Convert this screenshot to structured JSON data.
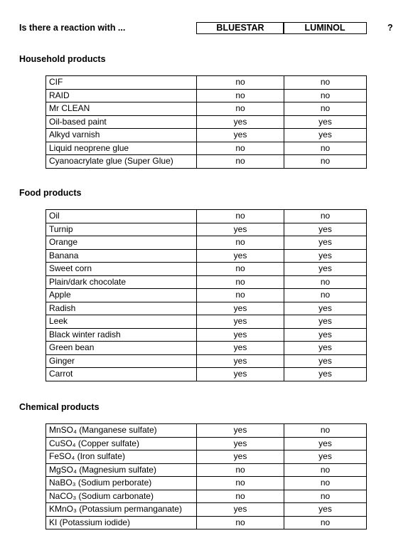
{
  "header": {
    "question": "Is there a reaction with ...",
    "columns": [
      "BLUESTAR",
      "LUMINOL"
    ],
    "mark": "?"
  },
  "sections": [
    {
      "title": "Household products",
      "rows": [
        [
          "CIF",
          "no",
          "no"
        ],
        [
          "RAID",
          "no",
          "no"
        ],
        [
          "Mr CLEAN",
          "no",
          "no"
        ],
        [
          "Oil-based paint",
          "yes",
          "yes"
        ],
        [
          "Alkyd varnish",
          "yes",
          "yes"
        ],
        [
          "Liquid neoprene glue",
          "no",
          "no"
        ],
        [
          "Cyanoacrylate glue (Super Glue)",
          "no",
          "no"
        ]
      ]
    },
    {
      "title": "Food products",
      "rows": [
        [
          "Oil",
          "no",
          "no"
        ],
        [
          "Turnip",
          "yes",
          "yes"
        ],
        [
          "Orange",
          "no",
          "yes"
        ],
        [
          "Banana",
          "yes",
          "yes"
        ],
        [
          "Sweet corn",
          "no",
          "yes"
        ],
        [
          "Plain/dark chocolate",
          "no",
          "no"
        ],
        [
          "Apple",
          "no",
          "no"
        ],
        [
          "Radish",
          "yes",
          "yes"
        ],
        [
          "Leek",
          "yes",
          "yes"
        ],
        [
          "Black winter radish",
          "yes",
          "yes"
        ],
        [
          "Green bean",
          "yes",
          "yes"
        ],
        [
          "Ginger",
          "yes",
          "yes"
        ],
        [
          "Carrot",
          "yes",
          "yes"
        ]
      ]
    },
    {
      "title": "Chemical products",
      "rows": [
        [
          "MnSO₄ (Manganese sulfate)",
          "yes",
          "no"
        ],
        [
          "CuSO₄ (Copper sulfate)",
          "yes",
          "yes"
        ],
        [
          "FeSO₄ (Iron sulfate)",
          "yes",
          "yes"
        ],
        [
          "MgSO₄ (Magnesium sulfate)",
          "no",
          "no"
        ],
        [
          "NaBO₃ (Sodium perborate)",
          "no",
          "no"
        ],
        [
          "NaCO₃ (Sodium carbonate)",
          "no",
          "no"
        ],
        [
          "KMnO₃ (Potassium permanganate)",
          "yes",
          "yes"
        ],
        [
          "KI (Potassium iodide)",
          "no",
          "no"
        ]
      ]
    }
  ]
}
